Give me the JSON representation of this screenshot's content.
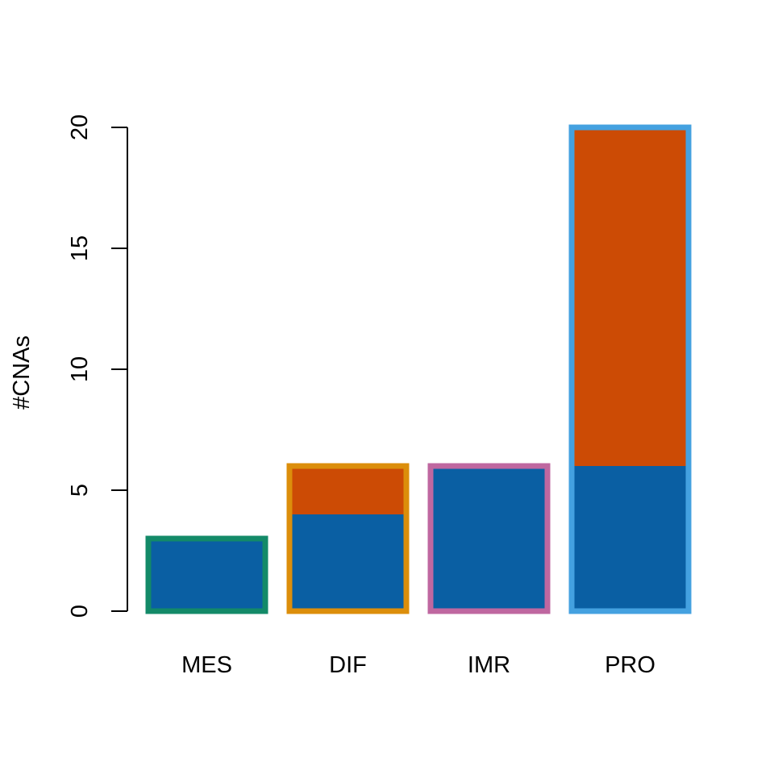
{
  "chart_data": {
    "type": "bar",
    "stacked": true,
    "title": "",
    "xlabel": "",
    "ylabel": "#CNAs",
    "ylim": [
      0,
      20
    ],
    "yticks": [
      0,
      5,
      10,
      15,
      20
    ],
    "categories": [
      "MES",
      "DIF",
      "IMR",
      "PRO"
    ],
    "series": [
      {
        "values": [
          3,
          4,
          6,
          6
        ],
        "color": "#0a5fa3"
      },
      {
        "values": [
          0,
          2,
          0,
          14
        ],
        "color": "#cc4b05"
      }
    ],
    "bar_border_colors": [
      "#138a68",
      "#dc8e0b",
      "#bf67a0",
      "#44a1e0"
    ],
    "grid": false,
    "legend": "none"
  }
}
